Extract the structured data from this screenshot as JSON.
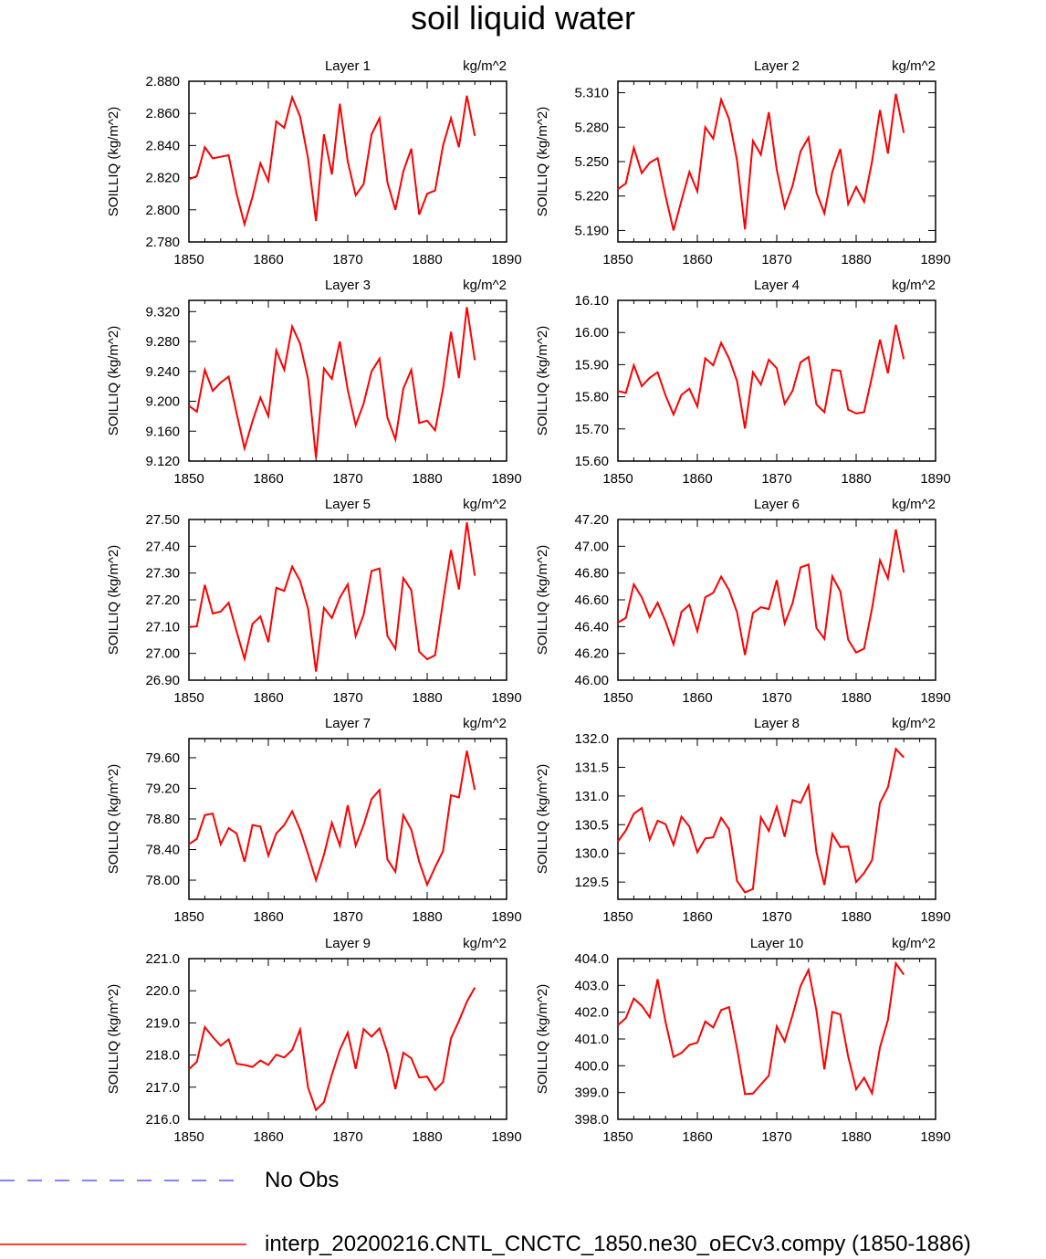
{
  "title": "soil liquid water",
  "legend": [
    {
      "label": "No Obs",
      "color": "#5a5aff",
      "style": "dashed"
    },
    {
      "label": "interp_20200216.CNTL_CNCTC_1850.ne30_oECv3.compy (1850-1886)",
      "color": "#ff0000",
      "style": "solid"
    }
  ],
  "chart_data": [
    {
      "type": "line",
      "title": "Layer 1",
      "units": "kg/m^2",
      "ylabel": "SOILLIQ  (kg/m^2)",
      "xlim": [
        1850,
        1890
      ],
      "xticks": [
        "1850",
        "1860",
        "1870",
        "1880",
        "1890"
      ],
      "ylim": [
        2.78,
        2.88
      ],
      "yticks": [
        "2.780",
        "2.800",
        "2.820",
        "2.840",
        "2.860",
        "2.880"
      ],
      "x": [
        1850,
        1851,
        1852,
        1853,
        1854,
        1855,
        1856,
        1857,
        1858,
        1859,
        1860,
        1861,
        1862,
        1863,
        1864,
        1865,
        1866,
        1867,
        1868,
        1869,
        1870,
        1871,
        1872,
        1873,
        1874,
        1875,
        1876,
        1877,
        1878,
        1879,
        1880,
        1881,
        1882,
        1883,
        1884,
        1885,
        1886
      ],
      "series": [
        {
          "color": "#ff0000",
          "values": [
            2.819,
            2.821,
            2.839,
            2.832,
            2.833,
            2.834,
            2.81,
            2.791,
            2.808,
            2.829,
            2.818,
            2.855,
            2.851,
            2.87,
            2.858,
            2.832,
            2.793,
            2.847,
            2.822,
            2.866,
            2.83,
            2.809,
            2.816,
            2.847,
            2.857,
            2.817,
            2.8,
            2.824,
            2.838,
            2.797,
            2.81,
            2.812,
            2.84,
            2.857,
            2.839,
            2.871,
            2.846
          ]
        }
      ]
    },
    {
      "type": "line",
      "title": "Layer 2",
      "units": "kg/m^2",
      "ylabel": "SOILLIQ  (kg/m^2)",
      "xlim": [
        1850,
        1890
      ],
      "xticks": [
        "1850",
        "1860",
        "1870",
        "1880",
        "1890"
      ],
      "ylim": [
        5.18,
        5.32
      ],
      "yticks": [
        "5.190",
        "5.220",
        "5.250",
        "5.280",
        "5.310"
      ],
      "x": [
        1850,
        1851,
        1852,
        1853,
        1854,
        1855,
        1856,
        1857,
        1858,
        1859,
        1860,
        1861,
        1862,
        1863,
        1864,
        1865,
        1866,
        1867,
        1868,
        1869,
        1870,
        1871,
        1872,
        1873,
        1874,
        1875,
        1876,
        1877,
        1878,
        1879,
        1880,
        1881,
        1882,
        1883,
        1884,
        1885,
        1886
      ],
      "series": [
        {
          "color": "#ff0000",
          "values": [
            5.226,
            5.231,
            5.262,
            5.24,
            5.249,
            5.253,
            5.22,
            5.19,
            5.216,
            5.241,
            5.224,
            5.28,
            5.27,
            5.304,
            5.287,
            5.251,
            5.191,
            5.268,
            5.256,
            5.293,
            5.243,
            5.21,
            5.229,
            5.259,
            5.271,
            5.223,
            5.205,
            5.241,
            5.261,
            5.213,
            5.228,
            5.215,
            5.25,
            5.295,
            5.257,
            5.309,
            5.275
          ]
        }
      ]
    },
    {
      "type": "line",
      "title": "Layer 3",
      "units": "kg/m^2",
      "ylabel": "SOILLIQ  (kg/m^2)",
      "xlim": [
        1850,
        1890
      ],
      "xticks": [
        "1850",
        "1860",
        "1870",
        "1880",
        "1890"
      ],
      "ylim": [
        9.12,
        9.335
      ],
      "yticks": [
        "9.120",
        "9.160",
        "9.200",
        "9.240",
        "9.280",
        "9.320"
      ],
      "x": [
        1850,
        1851,
        1852,
        1853,
        1854,
        1855,
        1856,
        1857,
        1858,
        1859,
        1860,
        1861,
        1862,
        1863,
        1864,
        1865,
        1866,
        1867,
        1868,
        1869,
        1870,
        1871,
        1872,
        1873,
        1874,
        1875,
        1876,
        1877,
        1878,
        1879,
        1880,
        1881,
        1882,
        1883,
        1884,
        1885,
        1886
      ],
      "series": [
        {
          "color": "#ff0000",
          "values": [
            9.194,
            9.186,
            9.242,
            9.214,
            9.225,
            9.233,
            9.184,
            9.137,
            9.173,
            9.205,
            9.18,
            9.268,
            9.242,
            9.3,
            9.277,
            9.23,
            9.124,
            9.244,
            9.23,
            9.28,
            9.215,
            9.168,
            9.197,
            9.24,
            9.257,
            9.178,
            9.149,
            9.217,
            9.242,
            9.171,
            9.174,
            9.161,
            9.217,
            9.293,
            9.231,
            9.326,
            9.255
          ]
        }
      ]
    },
    {
      "type": "line",
      "title": "Layer 4",
      "units": "kg/m^2",
      "ylabel": "SOILLIQ  (kg/m^2)",
      "xlim": [
        1850,
        1890
      ],
      "xticks": [
        "1850",
        "1860",
        "1870",
        "1880",
        "1890"
      ],
      "ylim": [
        15.6,
        16.1
      ],
      "yticks": [
        "15.60",
        "15.70",
        "15.80",
        "15.90",
        "16.00",
        "16.10"
      ],
      "x": [
        1850,
        1851,
        1852,
        1853,
        1854,
        1855,
        1856,
        1857,
        1858,
        1859,
        1860,
        1861,
        1862,
        1863,
        1864,
        1865,
        1866,
        1867,
        1868,
        1869,
        1870,
        1871,
        1872,
        1873,
        1874,
        1875,
        1876,
        1877,
        1878,
        1879,
        1880,
        1881,
        1882,
        1883,
        1884,
        1885,
        1886
      ],
      "series": [
        {
          "color": "#ff0000",
          "values": [
            15.818,
            15.812,
            15.898,
            15.833,
            15.859,
            15.876,
            15.804,
            15.745,
            15.806,
            15.825,
            15.77,
            15.92,
            15.898,
            15.968,
            15.919,
            15.849,
            15.701,
            15.876,
            15.838,
            15.915,
            15.889,
            15.778,
            15.819,
            15.907,
            15.924,
            15.776,
            15.752,
            15.884,
            15.881,
            15.76,
            15.748,
            15.752,
            15.863,
            15.978,
            15.873,
            16.024,
            15.917
          ]
        }
      ]
    },
    {
      "type": "line",
      "title": "Layer 5",
      "units": "kg/m^2",
      "ylabel": "SOILLIQ  (kg/m^2)",
      "xlim": [
        1850,
        1890
      ],
      "xticks": [
        "1850",
        "1860",
        "1870",
        "1880",
        "1890"
      ],
      "ylim": [
        26.9,
        27.5
      ],
      "yticks": [
        "26.90",
        "27.00",
        "27.10",
        "27.20",
        "27.30",
        "27.40",
        "27.50"
      ],
      "x": [
        1850,
        1851,
        1852,
        1853,
        1854,
        1855,
        1856,
        1857,
        1858,
        1859,
        1860,
        1861,
        1862,
        1863,
        1864,
        1865,
        1866,
        1867,
        1868,
        1869,
        1870,
        1871,
        1872,
        1873,
        1874,
        1875,
        1876,
        1877,
        1878,
        1879,
        1880,
        1881,
        1882,
        1883,
        1884,
        1885,
        1886
      ],
      "series": [
        {
          "color": "#ff0000",
          "values": [
            27.098,
            27.101,
            27.256,
            27.149,
            27.156,
            27.189,
            27.082,
            26.98,
            27.11,
            27.138,
            27.042,
            27.245,
            27.233,
            27.324,
            27.271,
            27.167,
            26.932,
            27.17,
            27.132,
            27.208,
            27.258,
            27.064,
            27.144,
            27.308,
            27.317,
            27.065,
            27.017,
            27.281,
            27.236,
            27.006,
            26.978,
            26.993,
            27.195,
            27.386,
            27.239,
            27.489,
            27.29
          ]
        }
      ]
    },
    {
      "type": "line",
      "title": "Layer 6",
      "units": "kg/m^2",
      "ylabel": "SOILLIQ  (kg/m^2)",
      "xlim": [
        1850,
        1890
      ],
      "xticks": [
        "1850",
        "1860",
        "1870",
        "1880",
        "1890"
      ],
      "ylim": [
        46.0,
        47.2
      ],
      "yticks": [
        "46.00",
        "46.20",
        "46.40",
        "46.60",
        "46.80",
        "47.00",
        "47.20"
      ],
      "x": [
        1850,
        1851,
        1852,
        1853,
        1854,
        1855,
        1856,
        1857,
        1858,
        1859,
        1860,
        1861,
        1862,
        1863,
        1864,
        1865,
        1866,
        1867,
        1868,
        1869,
        1870,
        1871,
        1872,
        1873,
        1874,
        1875,
        1876,
        1877,
        1878,
        1879,
        1880,
        1881,
        1882,
        1883,
        1884,
        1885,
        1886
      ],
      "series": [
        {
          "color": "#ff0000",
          "values": [
            46.43,
            46.466,
            46.715,
            46.619,
            46.471,
            46.578,
            46.437,
            46.268,
            46.51,
            46.563,
            46.366,
            46.619,
            46.652,
            46.773,
            46.672,
            46.507,
            46.188,
            46.502,
            46.545,
            46.531,
            46.747,
            46.423,
            46.576,
            46.842,
            46.864,
            46.39,
            46.308,
            46.775,
            46.664,
            46.303,
            46.206,
            46.236,
            46.536,
            46.896,
            46.76,
            47.126,
            46.804
          ]
        }
      ]
    },
    {
      "type": "line",
      "title": "Layer 7",
      "units": "kg/m^2",
      "ylabel": "SOILLIQ  (kg/m^2)",
      "xlim": [
        1850,
        1890
      ],
      "xticks": [
        "1850",
        "1860",
        "1870",
        "1880",
        "1890"
      ],
      "ylim": [
        77.75,
        79.85
      ],
      "yticks": [
        "78.00",
        "78.40",
        "78.80",
        "79.20",
        "79.60"
      ],
      "x": [
        1850,
        1851,
        1852,
        1853,
        1854,
        1855,
        1856,
        1857,
        1858,
        1859,
        1860,
        1861,
        1862,
        1863,
        1864,
        1865,
        1866,
        1867,
        1868,
        1869,
        1870,
        1871,
        1872,
        1873,
        1874,
        1875,
        1876,
        1877,
        1878,
        1879,
        1880,
        1881,
        1882,
        1883,
        1884,
        1885,
        1886
      ],
      "series": [
        {
          "color": "#ff0000",
          "values": [
            78.47,
            78.54,
            78.85,
            78.87,
            78.47,
            78.68,
            78.61,
            78.24,
            78.72,
            78.7,
            78.32,
            78.61,
            78.72,
            78.9,
            78.66,
            78.34,
            78.0,
            78.33,
            78.75,
            78.45,
            78.98,
            78.45,
            78.72,
            79.06,
            79.18,
            78.27,
            78.11,
            78.85,
            78.66,
            78.24,
            77.94,
            78.17,
            78.38,
            79.11,
            79.08,
            79.69,
            79.18
          ]
        }
      ]
    },
    {
      "type": "line",
      "title": "Layer 8",
      "units": "kg/m^2",
      "ylabel": "SOILLIQ  (kg/m^2)",
      "xlim": [
        1850,
        1890
      ],
      "xticks": [
        "1850",
        "1860",
        "1870",
        "1880",
        "1890"
      ],
      "ylim": [
        129.2,
        132.0
      ],
      "yticks": [
        "129.5",
        "130.0",
        "130.5",
        "131.0",
        "131.5",
        "132.0"
      ],
      "x": [
        1850,
        1851,
        1852,
        1853,
        1854,
        1855,
        1856,
        1857,
        1858,
        1859,
        1860,
        1861,
        1862,
        1863,
        1864,
        1865,
        1866,
        1867,
        1868,
        1869,
        1870,
        1871,
        1872,
        1873,
        1874,
        1875,
        1876,
        1877,
        1878,
        1879,
        1880,
        1881,
        1882,
        1883,
        1884,
        1885,
        1886
      ],
      "series": [
        {
          "color": "#ff0000",
          "values": [
            130.21,
            130.4,
            130.69,
            130.79,
            130.24,
            130.57,
            130.51,
            130.15,
            130.64,
            130.47,
            130.02,
            130.26,
            130.28,
            130.62,
            130.42,
            129.52,
            129.32,
            129.38,
            130.63,
            130.39,
            130.81,
            130.29,
            130.93,
            130.88,
            131.18,
            130.02,
            129.45,
            130.34,
            130.11,
            130.12,
            129.5,
            129.66,
            129.88,
            130.88,
            131.15,
            131.82,
            131.67
          ]
        }
      ]
    },
    {
      "type": "line",
      "title": "Layer 9",
      "units": "kg/m^2",
      "ylabel": "SOILLIQ  (kg/m^2)",
      "xlim": [
        1850,
        1890
      ],
      "xticks": [
        "1850",
        "1860",
        "1870",
        "1880",
        "1890"
      ],
      "ylim": [
        216.0,
        221.0
      ],
      "yticks": [
        "216.0",
        "217.0",
        "218.0",
        "219.0",
        "220.0",
        "221.0"
      ],
      "x": [
        1850,
        1851,
        1852,
        1853,
        1854,
        1855,
        1856,
        1857,
        1858,
        1859,
        1860,
        1861,
        1862,
        1863,
        1864,
        1865,
        1866,
        1867,
        1868,
        1869,
        1870,
        1871,
        1872,
        1873,
        1874,
        1875,
        1876,
        1877,
        1878,
        1879,
        1880,
        1881,
        1882,
        1883,
        1884,
        1885,
        1886
      ],
      "series": [
        {
          "color": "#ff0000",
          "values": [
            217.56,
            217.79,
            218.87,
            218.56,
            218.29,
            218.49,
            217.73,
            217.69,
            217.63,
            217.83,
            217.69,
            218.01,
            217.92,
            218.16,
            218.79,
            216.99,
            216.29,
            216.53,
            217.39,
            218.16,
            218.7,
            217.57,
            218.81,
            218.57,
            218.83,
            218.07,
            216.94,
            218.07,
            217.9,
            217.3,
            217.33,
            216.91,
            217.16,
            218.52,
            219.06,
            219.66,
            220.1
          ]
        }
      ]
    },
    {
      "type": "line",
      "title": "Layer 10",
      "units": "kg/m^2",
      "ylabel": "SOILLIQ  (kg/m^2)",
      "xlim": [
        1850,
        1890
      ],
      "xticks": [
        "1850",
        "1860",
        "1870",
        "1880",
        "1890"
      ],
      "ylim": [
        398.0,
        404.0
      ],
      "yticks": [
        "398.0",
        "399.0",
        "400.0",
        "401.0",
        "402.0",
        "403.0",
        "404.0"
      ],
      "x": [
        1850,
        1851,
        1852,
        1853,
        1854,
        1855,
        1856,
        1857,
        1858,
        1859,
        1860,
        1861,
        1862,
        1863,
        1864,
        1865,
        1866,
        1867,
        1868,
        1869,
        1870,
        1871,
        1872,
        1873,
        1874,
        1875,
        1876,
        1877,
        1878,
        1879,
        1880,
        1881,
        1882,
        1883,
        1884,
        1885,
        1886
      ],
      "series": [
        {
          "color": "#ff0000",
          "values": [
            401.52,
            401.78,
            402.51,
            402.24,
            401.81,
            403.23,
            401.63,
            400.33,
            400.48,
            400.78,
            400.86,
            401.65,
            401.43,
            402.08,
            402.19,
            400.65,
            398.94,
            398.96,
            399.3,
            399.63,
            401.47,
            400.91,
            401.9,
            402.98,
            403.58,
            402.06,
            399.86,
            402.01,
            401.92,
            400.34,
            399.12,
            399.55,
            398.97,
            400.69,
            401.71,
            403.82,
            403.4
          ]
        }
      ]
    }
  ]
}
